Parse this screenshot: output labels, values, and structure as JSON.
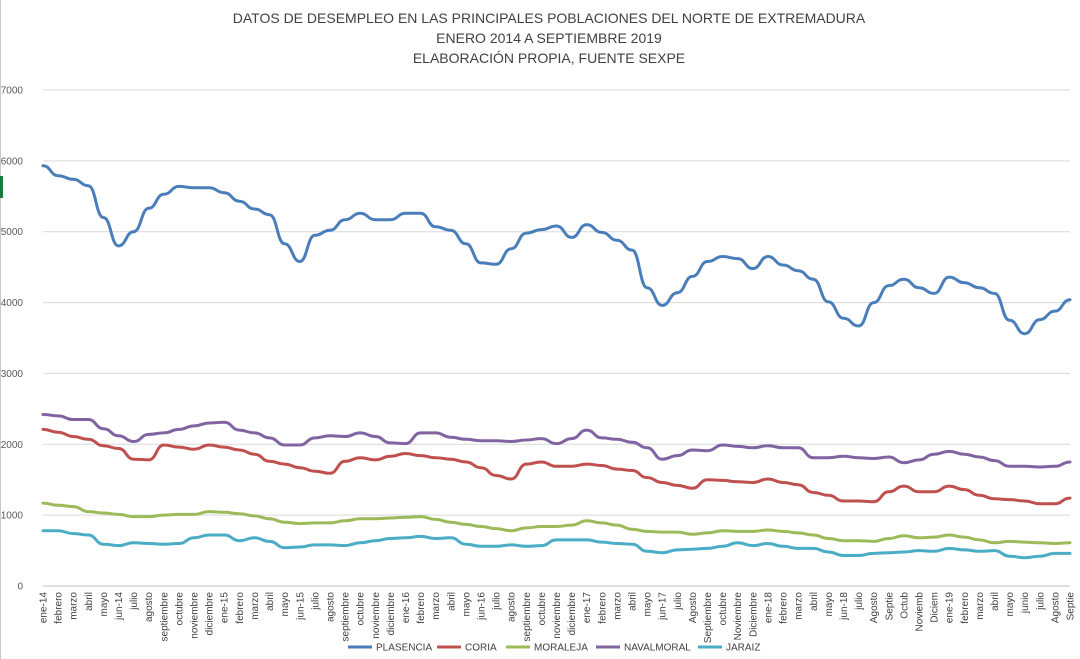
{
  "chart_data": {
    "type": "line",
    "title": [
      "DATOS DE DESEMPLEO EN LAS PRINCIPALES POBLACIONES DEL NORTE DE EXTREMADURA",
      "ENERO 2014 A  SEPTIEMBRE 2019",
      "ELABORACIÓN PROPIA, FUENTE SEXPE"
    ],
    "xlabel": "",
    "ylabel": "",
    "ylim": [
      0,
      7000
    ],
    "yticks": [
      0,
      1000,
      2000,
      3000,
      4000,
      5000,
      6000,
      7000
    ],
    "grid": true,
    "legend_position": "bottom",
    "categories": [
      "ene-14",
      "febrero",
      "marzo",
      "abril",
      "mayo",
      "jun-14",
      "julio",
      "agosto",
      "septiembre",
      "octubre",
      "noviembre",
      "diciembre",
      "ene-15",
      "febrero",
      "marzo",
      "abril",
      "mayo",
      "jun-15",
      "julio",
      "agosto",
      "septiembre",
      "octubre",
      "noviembre",
      "diciembre",
      "ene-16",
      "febrero",
      "marzo",
      "abril",
      "mayo",
      "jun-16",
      "julio",
      "agosto",
      "septiembre",
      "octubre",
      "noviembre",
      "diciembre",
      "ene-17",
      "febrero",
      "marzo",
      "abril",
      "mayo",
      "jun-17",
      "julio",
      "Agosto",
      "Septiembre",
      "octubre",
      "Noviembre",
      "Diciembre",
      "ene-18",
      "febrero",
      "marzo",
      "abril",
      "mayo",
      "jun-18",
      "julio",
      "Agosto",
      "Septie",
      "Octub",
      "Noviemb",
      "Diciem",
      "ene-19",
      "febrero",
      "marzo",
      "abril",
      "mayo",
      "junio",
      "julio",
      "Agosto",
      "Septie"
    ],
    "series": [
      {
        "name": "PLASENCIA",
        "color": "#4a7ebb",
        "values": [
          5930,
          5790,
          5740,
          5650,
          5200,
          4800,
          5000,
          5330,
          5530,
          5640,
          5620,
          5620,
          5550,
          5430,
          5320,
          5240,
          4830,
          4580,
          4950,
          5020,
          5170,
          5260,
          5170,
          5170,
          5260,
          5260,
          5070,
          5020,
          4830,
          4560,
          4540,
          4760,
          4980,
          5030,
          5080,
          4920,
          5100,
          4990,
          4880,
          4740,
          4210,
          3960,
          4140,
          4370,
          4580,
          4650,
          4620,
          4480,
          4650,
          4530,
          4450,
          4330,
          4010,
          3780,
          3670,
          4000,
          4240,
          4330,
          4210,
          4130,
          4360,
          4280,
          4210,
          4130,
          3750,
          3560,
          3760,
          3880,
          4040
        ]
      },
      {
        "name": "CORIA",
        "color": "#c0504d",
        "values": [
          2210,
          2170,
          2110,
          2070,
          1980,
          1940,
          1790,
          1780,
          1990,
          1960,
          1930,
          1990,
          1960,
          1920,
          1860,
          1760,
          1720,
          1670,
          1620,
          1590,
          1760,
          1810,
          1780,
          1830,
          1870,
          1840,
          1810,
          1790,
          1750,
          1670,
          1560,
          1510,
          1720,
          1750,
          1690,
          1690,
          1720,
          1700,
          1650,
          1630,
          1530,
          1460,
          1420,
          1380,
          1500,
          1490,
          1470,
          1460,
          1510,
          1460,
          1430,
          1320,
          1280,
          1200,
          1200,
          1190,
          1330,
          1410,
          1330,
          1330,
          1410,
          1360,
          1280,
          1230,
          1220,
          1200,
          1160,
          1160,
          1240
        ]
      },
      {
        "name": "MORALEJA",
        "color": "#9bbb59",
        "values": [
          1170,
          1140,
          1120,
          1050,
          1030,
          1010,
          980,
          980,
          1000,
          1010,
          1010,
          1050,
          1040,
          1020,
          990,
          950,
          900,
          880,
          890,
          890,
          920,
          950,
          950,
          960,
          970,
          980,
          940,
          900,
          870,
          840,
          810,
          780,
          820,
          840,
          840,
          860,
          920,
          890,
          860,
          800,
          770,
          760,
          760,
          730,
          750,
          780,
          770,
          770,
          790,
          770,
          750,
          720,
          670,
          640,
          640,
          630,
          670,
          710,
          680,
          690,
          720,
          690,
          650,
          610,
          630,
          620,
          610,
          600,
          610
        ]
      },
      {
        "name": "NAVALMORAL",
        "color": "#8064a2",
        "values": [
          2420,
          2400,
          2350,
          2350,
          2220,
          2120,
          2040,
          2140,
          2160,
          2210,
          2260,
          2300,
          2310,
          2200,
          2160,
          2090,
          1990,
          1990,
          2090,
          2120,
          2110,
          2160,
          2110,
          2020,
          2010,
          2160,
          2160,
          2100,
          2070,
          2050,
          2050,
          2040,
          2060,
          2080,
          2010,
          2080,
          2200,
          2090,
          2070,
          2030,
          1950,
          1790,
          1840,
          1920,
          1910,
          1990,
          1970,
          1950,
          1980,
          1950,
          1950,
          1810,
          1810,
          1830,
          1810,
          1800,
          1820,
          1740,
          1780,
          1860,
          1900,
          1860,
          1820,
          1770,
          1690,
          1690,
          1680,
          1690,
          1750
        ]
      },
      {
        "name": "JARAIZ",
        "color": "#4bacc6",
        "values": [
          780,
          780,
          740,
          720,
          590,
          570,
          610,
          600,
          590,
          600,
          680,
          720,
          720,
          640,
          680,
          630,
          540,
          550,
          580,
          580,
          570,
          610,
          640,
          670,
          680,
          700,
          670,
          680,
          590,
          560,
          560,
          580,
          560,
          570,
          650,
          650,
          650,
          620,
          600,
          590,
          490,
          470,
          510,
          520,
          530,
          560,
          610,
          570,
          600,
          560,
          530,
          530,
          480,
          430,
          430,
          460,
          470,
          480,
          500,
          490,
          530,
          510,
          490,
          500,
          420,
          400,
          420,
          460,
          460
        ]
      }
    ]
  }
}
